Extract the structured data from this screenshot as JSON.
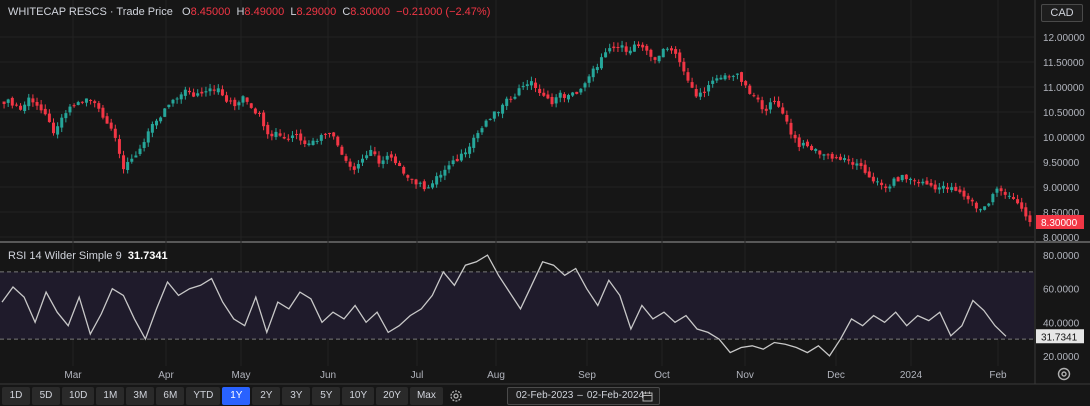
{
  "legend": {
    "symbol": "WHITECAP RESCS",
    "separator": " · ",
    "series_label": "Trade Price",
    "o_label": "O",
    "o_value": "8.45000",
    "h_label": "H",
    "h_value": "8.49000",
    "l_label": "L",
    "l_value": "8.29000",
    "c_label": "C",
    "c_value": "8.30000",
    "change": "−0.21000 (−2.47%)"
  },
  "currency": "CAD",
  "rsi_legend": {
    "label": "RSI 14 Wilder Simple 9",
    "value": "31.7341"
  },
  "colors": {
    "up": "#26a69a",
    "down": "#f23645",
    "rsi_line": "#c8c8c8",
    "accent": "#2962ff"
  },
  "ranges": [
    "1D",
    "5D",
    "10D",
    "1M",
    "3M",
    "6M",
    "YTD",
    "1Y",
    "2Y",
    "3Y",
    "5Y",
    "10Y",
    "20Y",
    "Max"
  ],
  "active_range": "1Y",
  "date_range": {
    "from": "02-Feb-2023",
    "to": "02-Feb-2024"
  },
  "icons": {
    "gear": "gear-icon",
    "calendar": "calendar-icon"
  },
  "chart_data": [
    {
      "type": "candlestick",
      "title": "",
      "y_ticks": [
        "8.00000",
        "8.50000",
        "9.00000",
        "9.50000",
        "10.00000",
        "10.50000",
        "11.00000",
        "11.50000",
        "12.00000"
      ],
      "ylim": [
        8.0,
        12.0
      ],
      "x_ticks": [
        "Mar",
        "Apr",
        "May",
        "Jun",
        "Jul",
        "Aug",
        "Sep",
        "Oct",
        "Nov",
        "Dec",
        "2024",
        "Feb"
      ],
      "last_price_label": "8.30000",
      "close_path": [
        10.72,
        10.68,
        10.55,
        10.8,
        10.62,
        10.35,
        10.05,
        10.45,
        10.6,
        10.72,
        10.75,
        10.6,
        10.3,
        10.05,
        9.35,
        9.55,
        9.8,
        10.15,
        10.3,
        10.6,
        10.72,
        10.95,
        10.82,
        10.9,
        11.0,
        10.95,
        10.72,
        10.62,
        10.85,
        10.6,
        10.4,
        10.05,
        10.1,
        9.95,
        10.08,
        9.92,
        9.9,
        10.0,
        10.15,
        9.85,
        9.55,
        9.35,
        9.6,
        9.7,
        9.48,
        9.62,
        9.4,
        9.28,
        9.1,
        9.0,
        9.05,
        9.25,
        9.4,
        9.55,
        9.75,
        10.0,
        10.2,
        10.4,
        10.55,
        10.75,
        10.9,
        11.1,
        11.05,
        10.8,
        10.7,
        10.85,
        10.8,
        10.9,
        11.05,
        11.35,
        11.6,
        11.75,
        11.8,
        11.75,
        11.85,
        11.7,
        11.55,
        11.7,
        11.8,
        11.55,
        11.1,
        10.8,
        10.95,
        11.1,
        11.2,
        11.25,
        11.2,
        10.9,
        10.75,
        10.55,
        10.7,
        10.55,
        10.1,
        9.85,
        9.8,
        9.72,
        9.65,
        9.6,
        9.55,
        9.5,
        9.4,
        9.25,
        9.1,
        8.95,
        9.1,
        9.2,
        9.15,
        9.1,
        9.05,
        9.0,
        8.98,
        8.95,
        8.85,
        8.75,
        8.55,
        8.62,
        8.95,
        8.9,
        8.8,
        8.52,
        8.3
      ]
    },
    {
      "type": "line",
      "title": "",
      "series": [
        {
          "name": "RSI 14 Wilder Simple 9"
        }
      ],
      "y_ticks": [
        "20.0000",
        "40.0000",
        "60.0000",
        "80.0000"
      ],
      "ylim": [
        14,
        86
      ],
      "bands": [
        30,
        70
      ],
      "last_value_label": "31.7341",
      "values": [
        52,
        61,
        55,
        40,
        58,
        46,
        38,
        55,
        33,
        45,
        60,
        56,
        42,
        30,
        48,
        64,
        56,
        60,
        62,
        66,
        52,
        42,
        38,
        55,
        34,
        52,
        48,
        58,
        54,
        40,
        46,
        42,
        50,
        40,
        46,
        34,
        38,
        44,
        48,
        56,
        70,
        62,
        74,
        76,
        80,
        68,
        58,
        48,
        62,
        76,
        74,
        68,
        72,
        60,
        50,
        65,
        56,
        36,
        50,
        42,
        46,
        40,
        44,
        36,
        34,
        30,
        22,
        25,
        26,
        24,
        28,
        27,
        25,
        22,
        26,
        20,
        30,
        42,
        38,
        44,
        40,
        46,
        38,
        44,
        41,
        46,
        32,
        38,
        53,
        47,
        38,
        31.7
      ]
    }
  ]
}
